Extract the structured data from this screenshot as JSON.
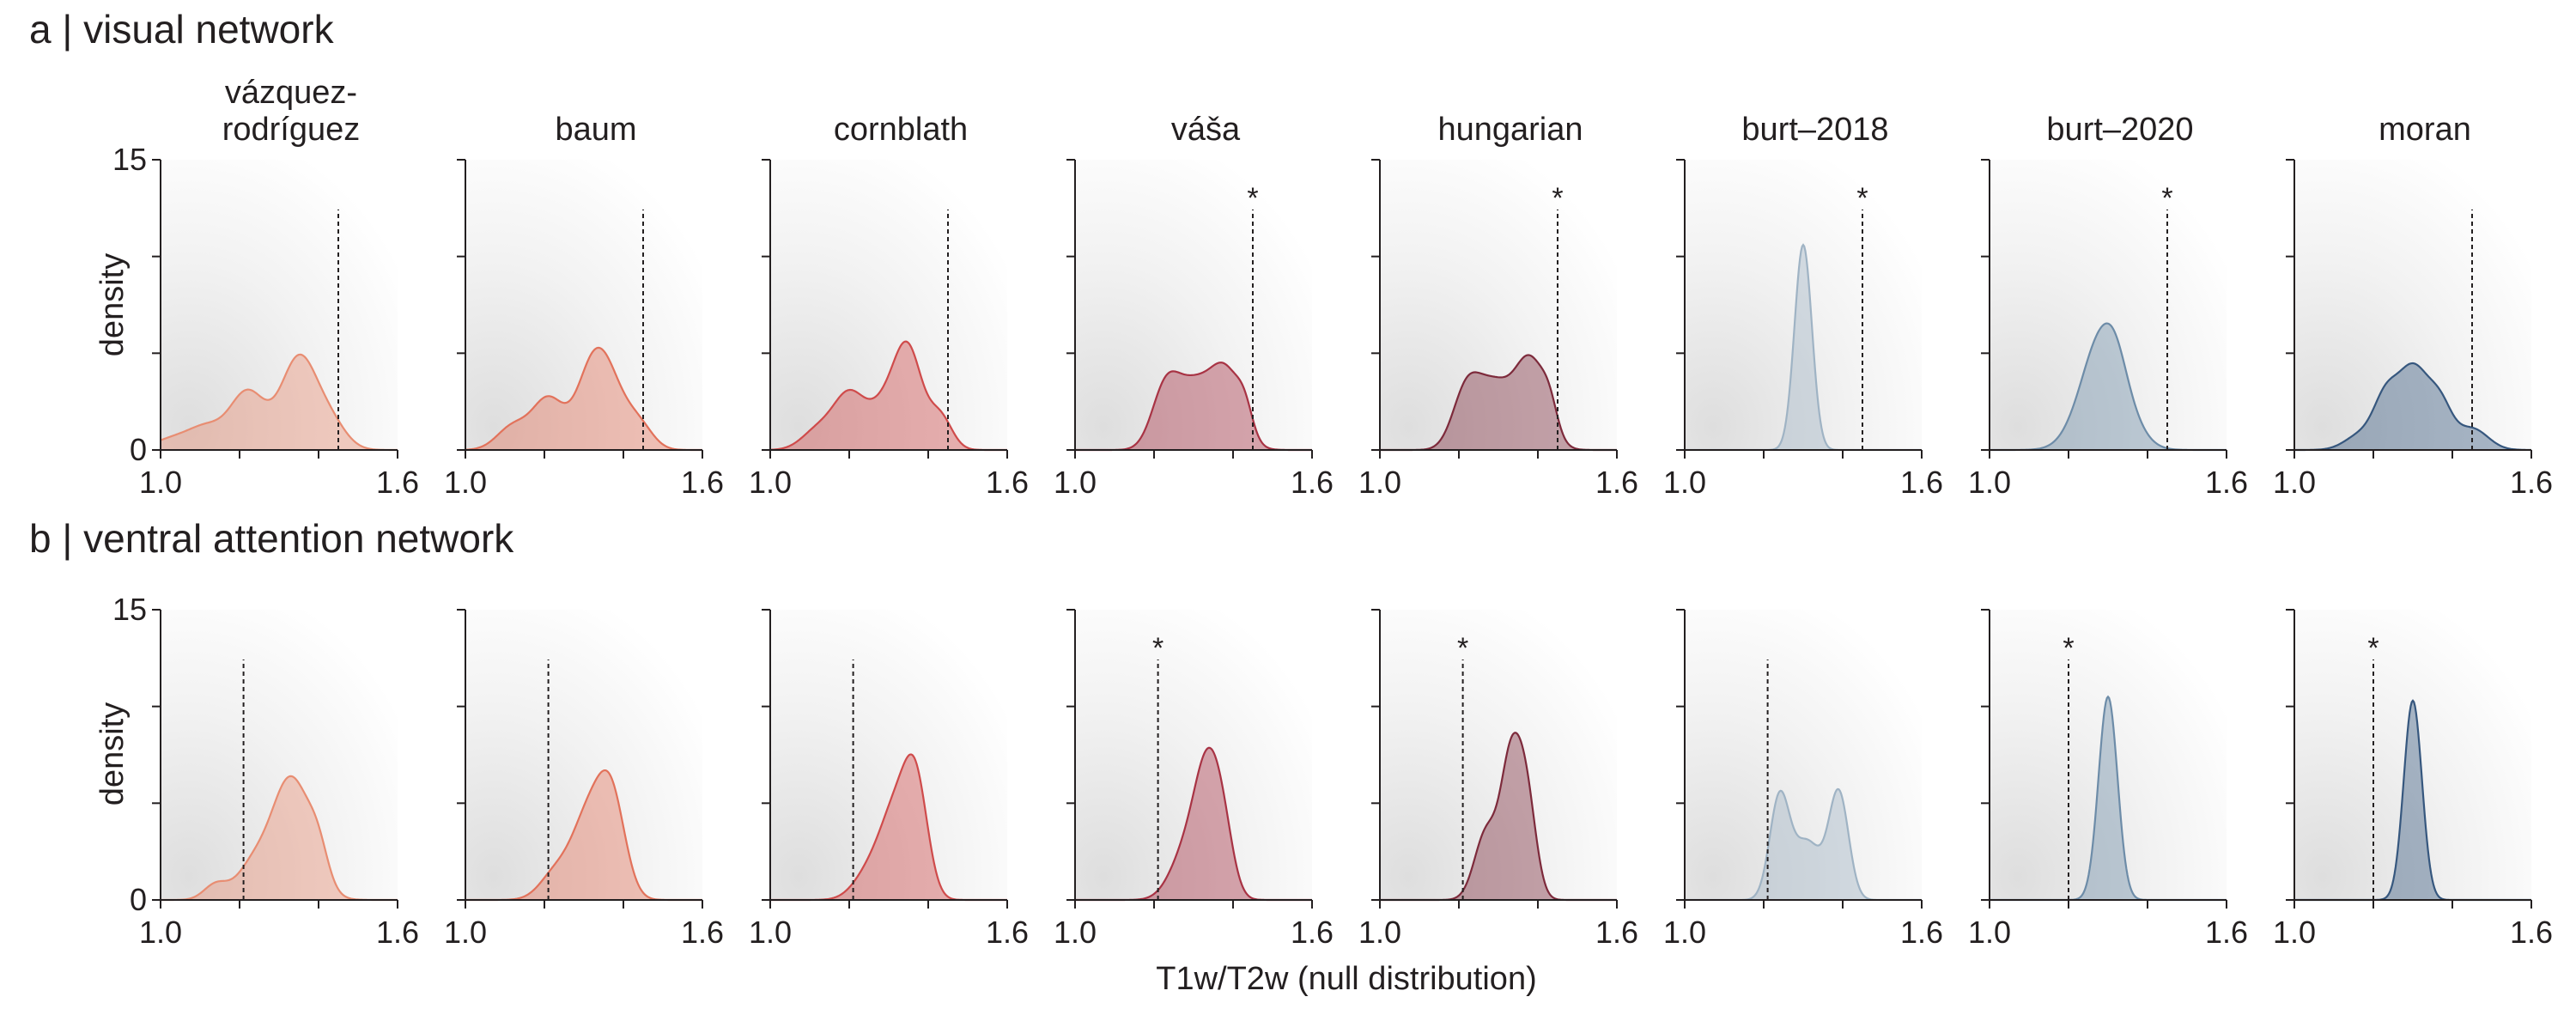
{
  "figure": {
    "x_axis_title": "T1w/T2w (null distribution)",
    "y_axis_title": "density",
    "x_ticks": [
      "1.0",
      "1.6"
    ],
    "y_ticks": [
      "0",
      "15"
    ],
    "significance_marker": "*"
  },
  "panels": [
    {
      "letter": "a",
      "title": "visual network"
    },
    {
      "letter": "b",
      "title": "ventral attention network"
    }
  ],
  "methods": [
    {
      "label": "vázquez-\nrodríguez",
      "color": "#e88d72"
    },
    {
      "label": "baum",
      "color": "#e2725b"
    },
    {
      "label": "cornblath",
      "color": "#cf4b4b"
    },
    {
      "label": "váša",
      "color": "#a83344"
    },
    {
      "label": "hungarian",
      "color": "#7d2a3b"
    },
    {
      "label": "burt–2018",
      "color": "#9fb3c4"
    },
    {
      "label": "burt–2020",
      "color": "#6d8ca8"
    },
    {
      "label": "moran",
      "color": "#36577e"
    }
  ],
  "chart_data": [
    {
      "type": "area",
      "panel": "a",
      "title": "visual network",
      "xlabel": "T1w/T2w (null distribution)",
      "ylabel": "density",
      "xlim": [
        1.0,
        1.6
      ],
      "ylim": [
        0,
        15
      ],
      "series": [
        {
          "name": "vázquez-rodríguez",
          "observed": 1.45,
          "significant": false,
          "peaks": [
            [
              1.05,
              0.7,
              0.06
            ],
            [
              1.12,
              0.8,
              0.04
            ],
            [
              1.22,
              3.0,
              0.045
            ],
            [
              1.35,
              4.7,
              0.045
            ],
            [
              1.43,
              1.3,
              0.04
            ]
          ]
        },
        {
          "name": "baum",
          "observed": 1.45,
          "significant": false,
          "peaks": [
            [
              1.12,
              1.2,
              0.04
            ],
            [
              1.21,
              2.6,
              0.04
            ],
            [
              1.32,
              3.8,
              0.04
            ],
            [
              1.37,
              2.5,
              0.04
            ],
            [
              1.44,
              1.2,
              0.035
            ]
          ]
        },
        {
          "name": "cornblath",
          "observed": 1.45,
          "significant": false,
          "peaks": [
            [
              1.12,
              1.0,
              0.04
            ],
            [
              1.2,
              2.8,
              0.04
            ],
            [
              1.29,
              2.1,
              0.04
            ],
            [
              1.35,
              4.8,
              0.035
            ],
            [
              1.43,
              1.7,
              0.03
            ]
          ]
        },
        {
          "name": "váša",
          "observed": 1.45,
          "significant": true,
          "peaks": [
            [
              1.23,
              3.2,
              0.035
            ],
            [
              1.3,
              2.9,
              0.04
            ],
            [
              1.38,
              4.0,
              0.04
            ],
            [
              1.43,
              1.2,
              0.02
            ]
          ]
        },
        {
          "name": "hungarian",
          "observed": 1.45,
          "significant": true,
          "peaks": [
            [
              1.22,
              3.1,
              0.035
            ],
            [
              1.29,
              3.0,
              0.04
            ],
            [
              1.38,
              4.6,
              0.04
            ],
            [
              1.43,
              1.2,
              0.02
            ]
          ]
        },
        {
          "name": "burt–2018",
          "observed": 1.45,
          "significant": true,
          "peaks": [
            [
              1.3,
              10.6,
              0.022
            ]
          ]
        },
        {
          "name": "burt–2020",
          "observed": 1.45,
          "significant": true,
          "peaks": [
            [
              1.29,
              6.2,
              0.055
            ],
            [
              1.32,
              0.6,
              0.025
            ]
          ]
        },
        {
          "name": "moran",
          "observed": 1.45,
          "significant": false,
          "peaks": [
            [
              1.17,
              0.8,
              0.04
            ],
            [
              1.23,
              2.2,
              0.03
            ],
            [
              1.3,
              4.2,
              0.04
            ],
            [
              1.37,
              2.0,
              0.03
            ],
            [
              1.45,
              1.1,
              0.04
            ]
          ]
        }
      ]
    },
    {
      "type": "area",
      "panel": "b",
      "title": "ventral attention network",
      "xlabel": "T1w/T2w (null distribution)",
      "ylabel": "density",
      "xlim": [
        1.0,
        1.6
      ],
      "ylim": [
        0,
        15
      ],
      "series": [
        {
          "name": "vázquez-rodríguez",
          "observed": 1.21,
          "significant": false,
          "peaks": [
            [
              1.14,
              0.8,
              0.03
            ],
            [
              1.23,
              1.5,
              0.04
            ],
            [
              1.33,
              6.3,
              0.05
            ],
            [
              1.4,
              1.5,
              0.025
            ]
          ]
        },
        {
          "name": "baum",
          "observed": 1.21,
          "significant": false,
          "peaks": [
            [
              1.23,
              1.4,
              0.04
            ],
            [
              1.31,
              4.0,
              0.04
            ],
            [
              1.37,
              5.0,
              0.035
            ]
          ]
        },
        {
          "name": "cornblath",
          "observed": 1.21,
          "significant": false,
          "peaks": [
            [
              1.25,
              1.3,
              0.04
            ],
            [
              1.32,
              4.5,
              0.04
            ],
            [
              1.37,
              5.0,
              0.03
            ]
          ]
        },
        {
          "name": "váša",
          "observed": 1.21,
          "significant": true,
          "peaks": [
            [
              1.28,
              2.3,
              0.04
            ],
            [
              1.34,
              6.7,
              0.035
            ],
            [
              1.38,
              1.5,
              0.025
            ]
          ]
        },
        {
          "name": "hungarian",
          "observed": 1.21,
          "significant": true,
          "peaks": [
            [
              1.27,
              3.5,
              0.03
            ],
            [
              1.33,
              6.3,
              0.025
            ],
            [
              1.37,
              5.3,
              0.025
            ]
          ]
        },
        {
          "name": "burt–2018",
          "observed": 1.21,
          "significant": false,
          "peaks": [
            [
              1.24,
              5.2,
              0.025
            ],
            [
              1.31,
              3.0,
              0.035
            ],
            [
              1.39,
              5.5,
              0.025
            ]
          ]
        },
        {
          "name": "burt–2020",
          "observed": 1.2,
          "significant": true,
          "peaks": [
            [
              1.3,
              10.5,
              0.024
            ]
          ]
        },
        {
          "name": "moran",
          "observed": 1.2,
          "significant": true,
          "peaks": [
            [
              1.3,
              10.3,
              0.023
            ]
          ]
        }
      ]
    }
  ]
}
